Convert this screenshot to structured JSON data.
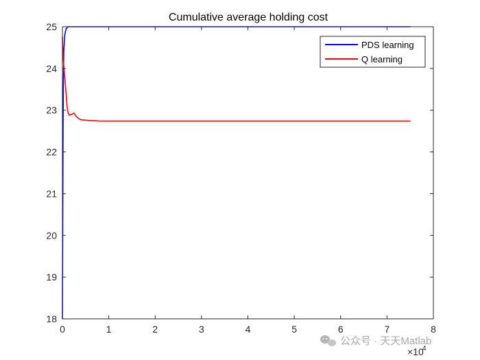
{
  "chart_data": {
    "type": "line",
    "title": "Cumulative average holding cost",
    "xlabel": "",
    "ylabel": "",
    "xlim": [
      0,
      8
    ],
    "ylim": [
      18,
      25
    ],
    "x_ticks": [
      "0",
      "1",
      "2",
      "3",
      "4",
      "5",
      "6",
      "7",
      "8"
    ],
    "y_ticks": [
      "18",
      "19",
      "20",
      "21",
      "22",
      "23",
      "24",
      "25"
    ],
    "x_multiplier": {
      "base": "×10",
      "exponent": "4"
    },
    "grid": false,
    "legend_position": "top-right",
    "series": [
      {
        "name": "PDS learning",
        "color": "#0000ff",
        "x": [
          0,
          0.005,
          0.01,
          0.015,
          0.02,
          0.03,
          0.05,
          0.08,
          0.12,
          0.2,
          0.5,
          1,
          2,
          3,
          4,
          5,
          6,
          7,
          7.5
        ],
        "y": [
          18,
          19.5,
          21.2,
          22.6,
          23.6,
          24.4,
          24.8,
          24.95,
          25,
          25,
          25,
          25,
          25,
          25,
          25,
          25,
          25,
          25,
          25
        ]
      },
      {
        "name": "Q learning",
        "color": "#ff0000",
        "x": [
          0,
          0.02,
          0.05,
          0.08,
          0.1,
          0.12,
          0.15,
          0.2,
          0.25,
          0.3,
          0.35,
          0.4,
          0.5,
          0.6,
          0.7,
          0.8,
          1,
          1.5,
          2,
          3,
          4,
          5,
          6,
          7,
          7.5
        ],
        "y": [
          24.75,
          24.2,
          23.8,
          23.4,
          23.1,
          22.95,
          22.88,
          22.9,
          22.93,
          22.85,
          22.8,
          22.77,
          22.76,
          22.75,
          22.75,
          22.74,
          22.74,
          22.74,
          22.74,
          22.74,
          22.74,
          22.74,
          22.74,
          22.74,
          22.74
        ]
      }
    ]
  },
  "watermark": {
    "text": "公众号 · 天天Matlab",
    "icon": "wechat-icon"
  }
}
